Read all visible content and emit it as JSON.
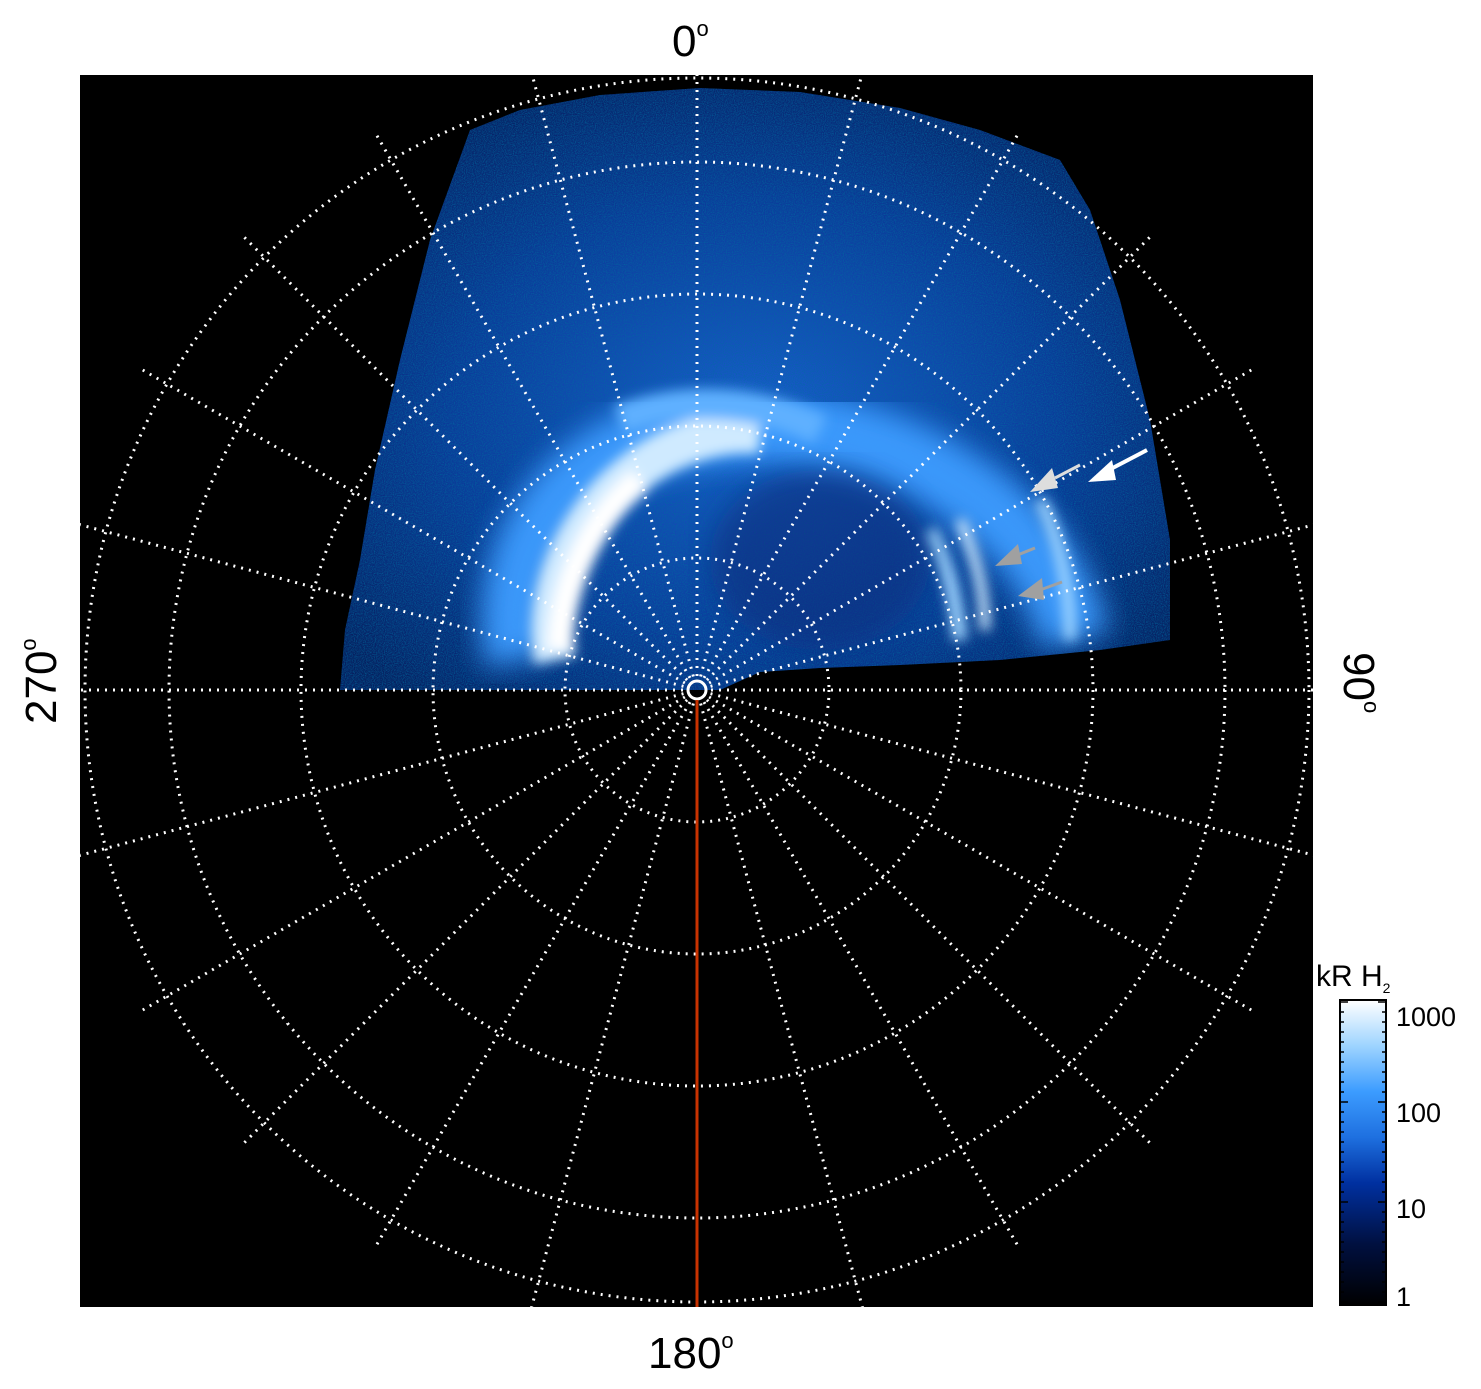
{
  "figure": {
    "axes": {
      "top": "0",
      "right": "90",
      "bottom": "180",
      "left": "270",
      "degree_symbol": "o"
    },
    "colorbar": {
      "title": "kR H",
      "title_subscript": "2",
      "ticks": [
        "1000",
        "100",
        "10",
        "1"
      ],
      "colors": [
        "#000000",
        "#001040",
        "#0030a0",
        "#1e70e0",
        "#3c9cff",
        "#9ed4ff",
        "#ffffff"
      ]
    },
    "colors": {
      "grid": "#ffffff",
      "meridian_line": "#c83200",
      "background": "#000000",
      "arrow_white": "#ffffff",
      "arrow_grey": "#a0a0a0"
    },
    "annotations": [
      "arrow-white",
      "arrow-light-grey",
      "arrow-grey-upper",
      "arrow-grey-lower"
    ]
  }
}
